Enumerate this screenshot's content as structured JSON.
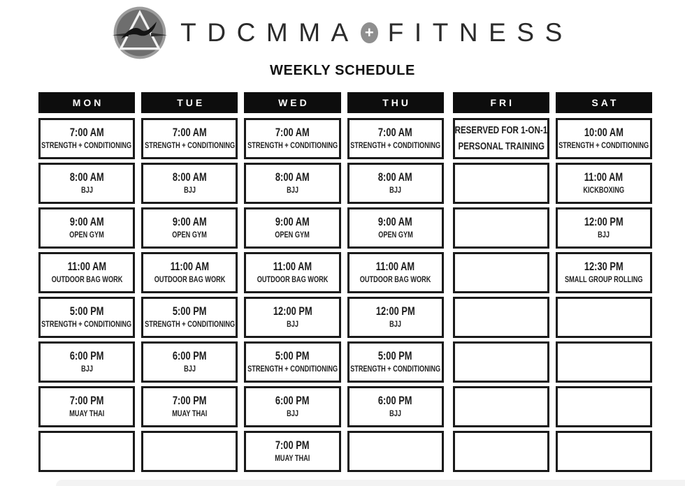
{
  "brand": {
    "name_left": "TDCMMA",
    "plus": "+",
    "name_right": "FITNESS"
  },
  "title": "WEEKLY SCHEDULE",
  "colors": {
    "ink": "#1a1a1a",
    "header_bg": "#0d0d0d",
    "header_text": "#ffffff",
    "logo_gray": "#6e6e6e",
    "logo_ring": "#9c9c9c",
    "plus_badge": "#8f8f8f",
    "bottom_bar": "#f3f3f3"
  },
  "days": [
    {
      "label": "MON",
      "slots": [
        {
          "time": "7:00 AM",
          "name": "STRENGTH + CONDITIONING"
        },
        {
          "time": "8:00 AM",
          "name": "BJJ"
        },
        {
          "time": "9:00 AM",
          "name": "OPEN GYM"
        },
        {
          "time": "11:00 AM",
          "name": "OUTDOOR BAG WORK"
        },
        {
          "time": "5:00 PM",
          "name": "STRENGTH + CONDITIONING"
        },
        {
          "time": "6:00 PM",
          "name": "BJJ"
        },
        {
          "time": "7:00 PM",
          "name": "MUAY THAI"
        },
        {}
      ]
    },
    {
      "label": "TUE",
      "slots": [
        {
          "time": "7:00 AM",
          "name": "STRENGTH + CONDITIONING"
        },
        {
          "time": "8:00 AM",
          "name": "BJJ"
        },
        {
          "time": "9:00 AM",
          "name": "OPEN GYM"
        },
        {
          "time": "11:00 AM",
          "name": "OUTDOOR BAG WORK"
        },
        {
          "time": "5:00 PM",
          "name": "STRENGTH + CONDITIONING"
        },
        {
          "time": "6:00 PM",
          "name": "BJJ"
        },
        {
          "time": "7:00 PM",
          "name": "MUAY THAI"
        },
        {}
      ]
    },
    {
      "label": "WED",
      "slots": [
        {
          "time": "7:00 AM",
          "name": "STRENGTH + CONDITIONING"
        },
        {
          "time": "8:00 AM",
          "name": "BJJ"
        },
        {
          "time": "9:00 AM",
          "name": "OPEN GYM"
        },
        {
          "time": "11:00 AM",
          "name": "OUTDOOR BAG WORK"
        },
        {
          "time": "12:00 PM",
          "name": "BJJ"
        },
        {
          "time": "5:00 PM",
          "name": "STRENGTH + CONDITIONING"
        },
        {
          "time": "6:00 PM",
          "name": "BJJ"
        },
        {
          "time": "7:00 PM",
          "name": "MUAY THAI"
        }
      ]
    },
    {
      "label": "THU",
      "slots": [
        {
          "time": "7:00 AM",
          "name": "STRENGTH + CONDITIONING"
        },
        {
          "time": "8:00 AM",
          "name": "BJJ"
        },
        {
          "time": "9:00 AM",
          "name": "OPEN GYM"
        },
        {
          "time": "11:00 AM",
          "name": "OUTDOOR BAG WORK"
        },
        {
          "time": "12:00 PM",
          "name": "BJJ"
        },
        {
          "time": "5:00 PM",
          "name": "STRENGTH + CONDITIONING"
        },
        {
          "time": "6:00 PM",
          "name": "BJJ"
        },
        {}
      ]
    },
    {
      "label": "FRI",
      "slots": [
        {
          "time": "RESERVED FOR 1-ON-1",
          "name": "PERSONAL TRAINING",
          "note": true
        },
        {},
        {},
        {},
        {},
        {},
        {},
        {}
      ]
    },
    {
      "label": "SAT",
      "slots": [
        {
          "time": "10:00 AM",
          "name": "STRENGTH + CONDITIONING"
        },
        {
          "time": "11:00 AM",
          "name": "KICKBOXING"
        },
        {
          "time": "12:00 PM",
          "name": "BJJ"
        },
        {
          "time": "12:30 PM",
          "name": "SMALL GROUP ROLLING"
        },
        {},
        {},
        {},
        {}
      ]
    }
  ]
}
